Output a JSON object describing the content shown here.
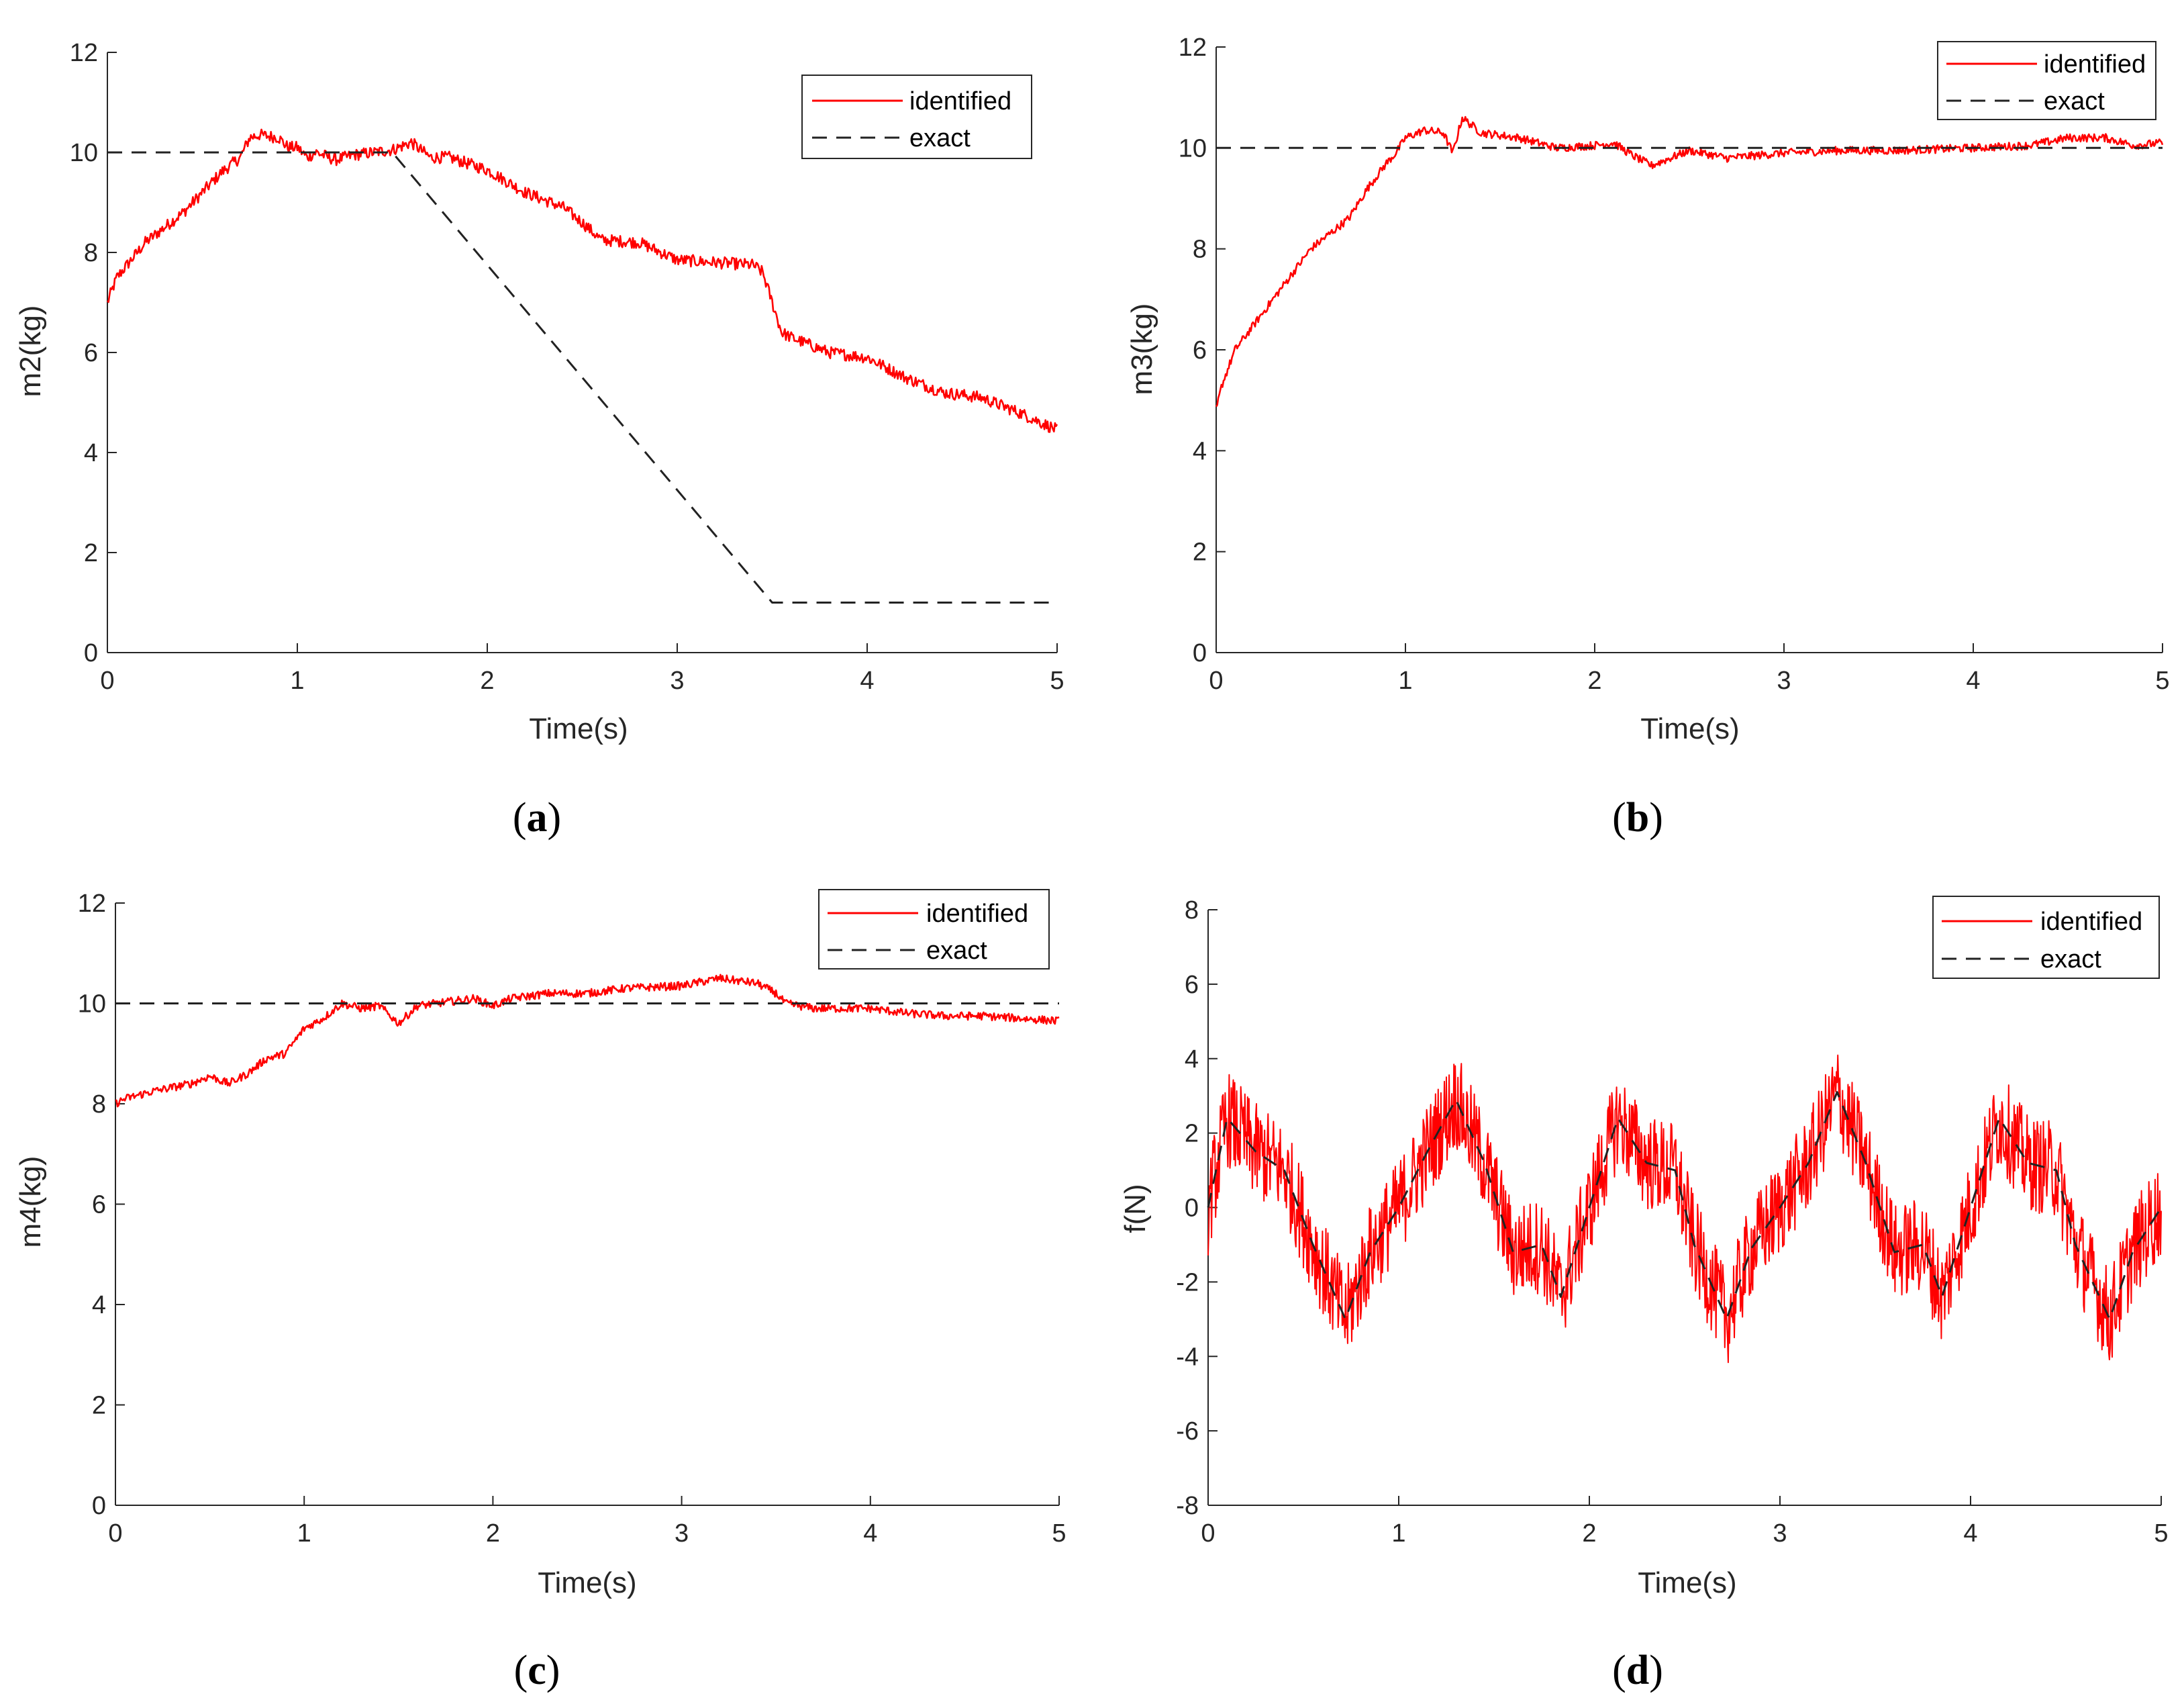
{
  "colors": {
    "identified": "#ff0000",
    "exact": "#222222",
    "axis": "#262626"
  },
  "chart_data": [
    {
      "id": "a",
      "type": "line",
      "caption_letter": "a",
      "xlabel": "Time(s)",
      "ylabel": "m2(kg)",
      "xlim": [
        0,
        5
      ],
      "ylim": [
        0,
        12
      ],
      "xticks": [
        0,
        1,
        2,
        3,
        4,
        5
      ],
      "yticks": [
        0,
        2,
        4,
        6,
        8,
        10,
        12
      ],
      "legend": {
        "position": "top-right",
        "entries": [
          "identified",
          "exact"
        ]
      },
      "series": [
        {
          "name": "identified",
          "style": "solid",
          "noise": 0.12,
          "x": [
            0,
            0.05,
            0.2,
            0.4,
            0.6,
            0.7,
            0.75,
            0.8,
            0.9,
            0.95,
            1.0,
            1.05,
            1.1,
            1.2,
            1.3,
            1.4,
            1.5,
            1.6,
            1.7,
            1.8,
            2.0,
            2.2,
            2.4,
            2.5,
            2.6,
            2.8,
            3.0,
            3.2,
            3.4,
            3.45,
            3.5,
            3.55,
            3.6,
            3.8,
            4.0,
            4.2,
            4.4,
            4.6,
            4.8,
            5.0
          ],
          "y": [
            7.0,
            7.5,
            8.2,
            8.8,
            9.6,
            9.9,
            10.3,
            10.35,
            10.3,
            10.1,
            10.1,
            9.9,
            10.0,
            9.85,
            9.95,
            10.0,
            10.05,
            10.2,
            9.9,
            9.9,
            9.65,
            9.2,
            8.9,
            8.6,
            8.25,
            8.2,
            7.85,
            7.8,
            7.75,
            7.6,
            7.0,
            6.4,
            6.3,
            6.0,
            5.9,
            5.5,
            5.2,
            5.1,
            4.8,
            4.45
          ]
        },
        {
          "name": "exact",
          "style": "dashed",
          "noise": 0,
          "x": [
            0,
            1.5,
            3.5,
            5.0
          ],
          "y": [
            10,
            10,
            1,
            1
          ]
        }
      ]
    },
    {
      "id": "b",
      "type": "line",
      "caption_letter": "b",
      "xlabel": "Time(s)",
      "ylabel": "m3(kg)",
      "xlim": [
        0,
        5
      ],
      "ylim": [
        0,
        12
      ],
      "xticks": [
        0,
        1,
        2,
        3,
        4,
        5
      ],
      "yticks": [
        0,
        2,
        4,
        6,
        8,
        10,
        12
      ],
      "legend": {
        "position": "top-right",
        "entries": [
          "identified",
          "exact"
        ]
      },
      "series": [
        {
          "name": "identified",
          "style": "solid",
          "noise": 0.08,
          "x": [
            0,
            0.03,
            0.1,
            0.3,
            0.5,
            0.7,
            0.8,
            0.9,
            0.95,
            1.0,
            1.1,
            1.2,
            1.25,
            1.3,
            1.4,
            1.6,
            1.8,
            2.0,
            2.1,
            2.2,
            2.3,
            2.5,
            2.7,
            3.0,
            3.3,
            3.6,
            4.0,
            4.3,
            4.5,
            4.7,
            4.85,
            5.0
          ],
          "y": [
            4.8,
            5.3,
            6.0,
            7.0,
            8.0,
            8.6,
            9.2,
            9.7,
            9.9,
            10.2,
            10.35,
            10.3,
            9.9,
            10.6,
            10.3,
            10.2,
            10.0,
            10.05,
            10.1,
            9.85,
            9.65,
            9.95,
            9.8,
            9.9,
            9.95,
            9.95,
            10.0,
            10.05,
            10.2,
            10.2,
            10.05,
            10.1
          ]
        },
        {
          "name": "exact",
          "style": "dashed",
          "noise": 0,
          "x": [
            0,
            5.0
          ],
          "y": [
            10,
            10
          ]
        }
      ]
    },
    {
      "id": "c",
      "type": "line",
      "caption_letter": "c",
      "xlabel": "Time(s)",
      "ylabel": "m4(kg)",
      "xlim": [
        0,
        5
      ],
      "ylim": [
        0,
        12
      ],
      "xticks": [
        0,
        1,
        2,
        3,
        4,
        5
      ],
      "yticks": [
        0,
        2,
        4,
        6,
        8,
        10,
        12
      ],
      "legend": {
        "position": "top-right",
        "entries": [
          "identified",
          "exact"
        ]
      },
      "series": [
        {
          "name": "identified",
          "style": "solid",
          "noise": 0.08,
          "x": [
            0,
            0.05,
            0.2,
            0.4,
            0.5,
            0.6,
            0.7,
            0.8,
            0.9,
            1.0,
            1.1,
            1.2,
            1.3,
            1.4,
            1.5,
            1.6,
            1.7,
            1.9,
            2.0,
            2.1,
            2.3,
            2.5,
            2.7,
            3.0,
            3.2,
            3.4,
            3.5,
            3.55,
            3.7,
            4.0,
            4.2,
            4.4,
            4.6,
            4.8,
            5.0
          ],
          "y": [
            8.0,
            8.1,
            8.25,
            8.4,
            8.55,
            8.4,
            8.6,
            8.9,
            9.0,
            9.5,
            9.7,
            10.0,
            9.9,
            9.95,
            9.6,
            9.95,
            10.0,
            10.1,
            9.95,
            10.1,
            10.2,
            10.2,
            10.3,
            10.35,
            10.5,
            10.4,
            10.2,
            10.0,
            9.9,
            9.9,
            9.8,
            9.75,
            9.75,
            9.7,
            9.65
          ]
        },
        {
          "name": "exact",
          "style": "dashed",
          "noise": 0,
          "x": [
            0,
            5.0
          ],
          "y": [
            10,
            10
          ]
        }
      ]
    },
    {
      "id": "d",
      "type": "line",
      "caption_letter": "d",
      "xlabel": "Time(s)",
      "ylabel": "f(N)",
      "xlim": [
        0,
        5
      ],
      "ylim": [
        -8,
        8
      ],
      "xticks": [
        0,
        1,
        2,
        3,
        4,
        5
      ],
      "yticks": [
        -8,
        -6,
        -4,
        -2,
        0,
        2,
        4,
        6,
        8
      ],
      "legend": {
        "position": "top-right",
        "entries": [
          "identified",
          "exact"
        ]
      },
      "series": [
        {
          "name": "identified",
          "style": "solid",
          "noise": 1.3,
          "x": [
            0,
            0.1,
            0.25,
            0.4,
            0.55,
            0.72,
            0.85,
            1.0,
            1.15,
            1.3,
            1.45,
            1.6,
            1.75,
            1.85,
            2.0,
            2.15,
            2.3,
            2.45,
            2.55,
            2.72,
            2.85,
            3.0,
            3.15,
            3.3,
            3.45,
            3.6,
            3.75,
            3.85,
            4.0,
            4.15,
            4.3,
            4.45,
            4.55,
            4.73,
            4.85,
            5.0
          ],
          "y": [
            0,
            2.4,
            1.5,
            1.0,
            -1.0,
            -3.0,
            -1.2,
            0,
            1.5,
            2.9,
            1.2,
            -1.2,
            -1.0,
            -2.4,
            0,
            2.4,
            1.2,
            1.0,
            -1.0,
            -3.0,
            -1.1,
            0,
            1.2,
            3.1,
            1.2,
            -1.2,
            -1.0,
            -2.4,
            0,
            2.4,
            1.2,
            1.0,
            -1.0,
            -3.0,
            -1.2,
            0
          ]
        },
        {
          "name": "exact",
          "style": "dashed",
          "noise": 0,
          "x": [
            0,
            0.1,
            0.25,
            0.4,
            0.55,
            0.72,
            0.85,
            1.0,
            1.15,
            1.3,
            1.45,
            1.6,
            1.75,
            1.85,
            2.0,
            2.15,
            2.3,
            2.45,
            2.55,
            2.72,
            2.85,
            3.0,
            3.15,
            3.3,
            3.45,
            3.6,
            3.75,
            3.85,
            4.0,
            4.15,
            4.3,
            4.45,
            4.55,
            4.73,
            4.85,
            5.0
          ],
          "y": [
            0,
            2.4,
            1.5,
            1.0,
            -1.0,
            -3.0,
            -1.2,
            0,
            1.5,
            2.9,
            1.2,
            -1.2,
            -1.0,
            -2.4,
            0,
            2.4,
            1.2,
            1.0,
            -1.0,
            -3.0,
            -1.1,
            0,
            1.2,
            3.1,
            1.2,
            -1.2,
            -1.0,
            -2.4,
            0,
            2.4,
            1.2,
            1.0,
            -1.0,
            -3.0,
            -1.2,
            0
          ]
        }
      ]
    }
  ]
}
